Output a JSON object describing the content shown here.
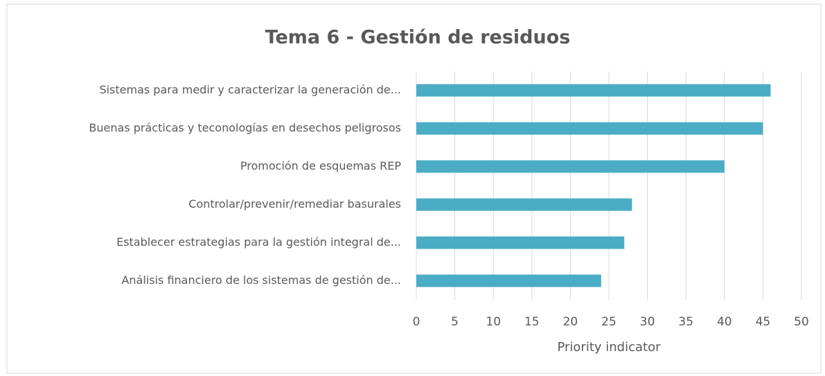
{
  "chart_data": {
    "type": "bar",
    "orientation": "horizontal",
    "title": "Tema 6 - Gestión de residuos",
    "x_label": "Priority indicator",
    "categories": [
      "Sistemas para medir y caracterizar la generación de...",
      "Buenas prácticas y teconologías en desechos peligrosos",
      "Promoción de esquemas REP",
      "Controlar/prevenir/remediar basurales",
      "Establecer estrategias para la gestión integral de...",
      "Análisis financiero de los sistemas de gestión de..."
    ],
    "values": [
      46,
      45,
      40,
      28,
      27,
      24
    ],
    "color": "#4bacc6",
    "xlim": [
      0,
      50
    ],
    "xticks": [
      0,
      5,
      10,
      15,
      20,
      25,
      30,
      35,
      40,
      45,
      50
    ],
    "grid": true
  }
}
